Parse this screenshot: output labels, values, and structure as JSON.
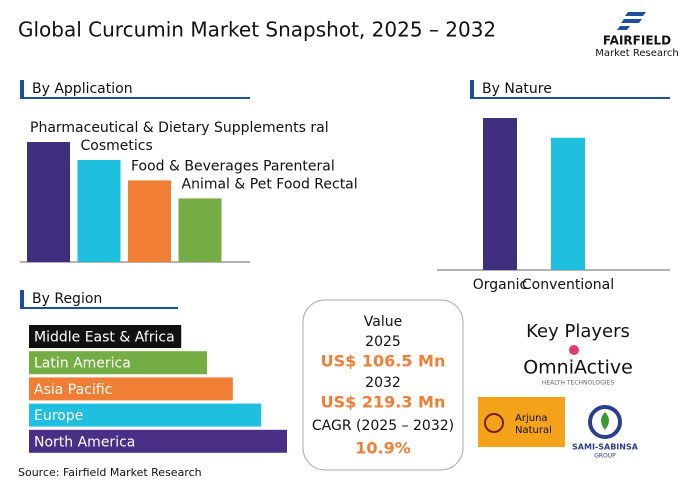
{
  "header": {
    "title": "Global Curcumin Market Snapshot, 2025 – 2032",
    "brand": "FAIRFIELD",
    "brand_sub": "Market Research"
  },
  "chart_data": [
    {
      "type": "bar",
      "title": "By Application",
      "orientation": "vertical",
      "categories": [
        "Pharmaceutical & Dietary Supplements ral",
        "Cosmetics",
        "Food & Beverages Parenteral",
        "Animal & Pet Food Rectal"
      ],
      "values": [
        100,
        85,
        68,
        53
      ],
      "colors": [
        "#3f2d7d",
        "#1fbfdf",
        "#f07f35",
        "#74ad44"
      ],
      "ylim": [
        0,
        100
      ]
    },
    {
      "type": "bar",
      "title": "By Nature",
      "orientation": "vertical",
      "categories": [
        "Organic",
        "Conventional"
      ],
      "values": [
        100,
        87
      ],
      "colors": [
        "#3f2d7d",
        "#1fbfdf"
      ],
      "ylim": [
        0,
        100
      ]
    },
    {
      "type": "bar",
      "title": "By Region",
      "orientation": "horizontal",
      "categories": [
        "Middle East & Africa",
        "Latin America",
        "Asia Pacific",
        "Europe",
        "North America"
      ],
      "values": [
        59,
        69,
        79,
        90,
        100
      ],
      "colors": [
        "#111111",
        "#74ad44",
        "#f07f35",
        "#1fbfdf",
        "#4a2f86"
      ],
      "xlim": [
        0,
        100
      ]
    }
  ],
  "snapshot": {
    "label": "Value",
    "year_start": "2025",
    "value_start": "US$ 106.5 Mn",
    "year_end": "2032",
    "value_end": "US$ 219.3 Mn",
    "cagr_label": "CAGR (2025 – 2032)",
    "cagr": "10.9%"
  },
  "key_players": {
    "title": "Key Players",
    "players": [
      "OmniActive",
      "HEALTH TECHNOLOGIES",
      "Arjuna",
      "Natural",
      "SAMI-SABINSA",
      "GROUP"
    ]
  },
  "source": "Source: Fairfield Market Research"
}
